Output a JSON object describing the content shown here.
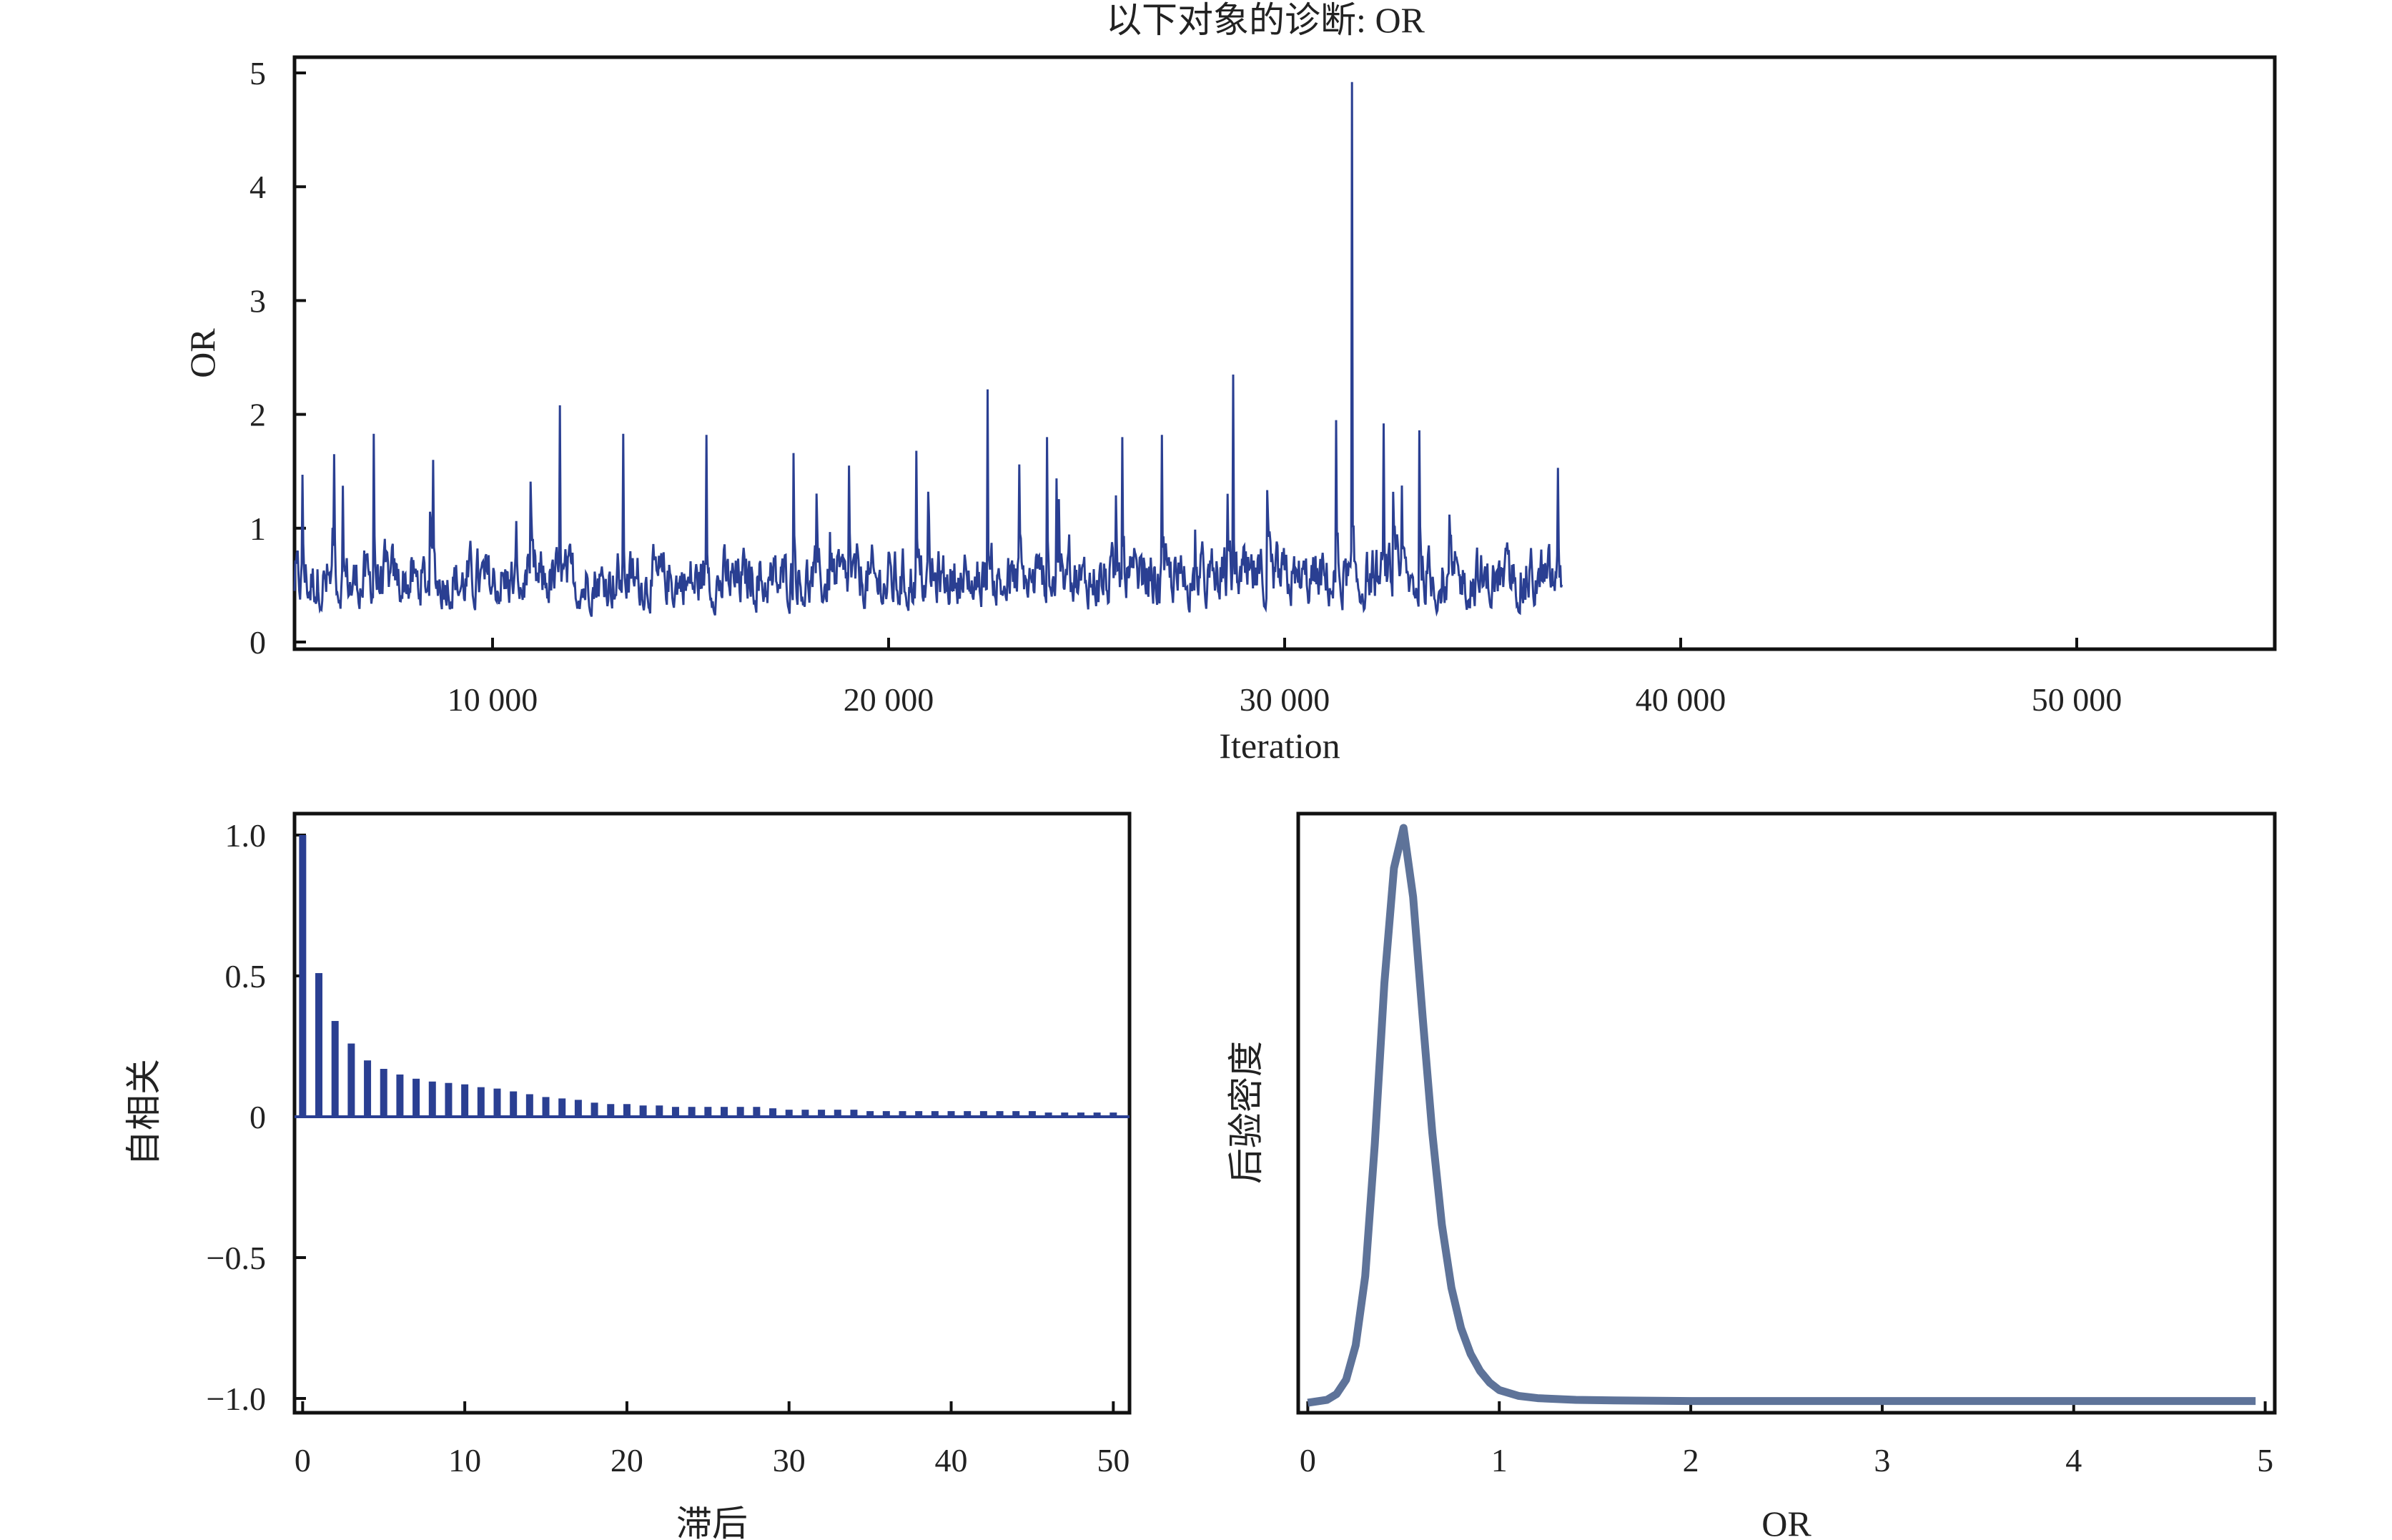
{
  "title": "以下对象的诊断: OR",
  "colors": {
    "trace": "#2a3f92",
    "acf": "#2a3f92",
    "density": "#5e7399",
    "axis": "#111111"
  },
  "chart_data": [
    {
      "type": "line",
      "panel": "trace",
      "title": "以下对象的诊断: OR",
      "xlabel": "Iteration",
      "ylabel": "OR",
      "xlim": [
        5000,
        55000
      ],
      "ylim": [
        0,
        5
      ],
      "x_ticks": [
        "10 000",
        "20 000",
        "30 000",
        "40 000",
        "50 000"
      ],
      "x_tick_values": [
        10000,
        20000,
        30000,
        40000,
        50000
      ],
      "y_ticks": [
        "0",
        "1",
        "2",
        "3",
        "4",
        "5"
      ],
      "y_tick_values": [
        0,
        1,
        2,
        3,
        4,
        5
      ],
      "series_x_range": [
        5000,
        37000
      ],
      "series_center": 0.55,
      "spikes": [
        {
          "x": 31700,
          "y": 4.92
        },
        {
          "x": 28700,
          "y": 2.35
        },
        {
          "x": 22500,
          "y": 2.22
        },
        {
          "x": 11700,
          "y": 2.08
        },
        {
          "x": 31300,
          "y": 1.95
        },
        {
          "x": 32500,
          "y": 1.92
        },
        {
          "x": 33400,
          "y": 1.86
        },
        {
          "x": 7000,
          "y": 1.83
        },
        {
          "x": 13300,
          "y": 1.83
        },
        {
          "x": 15400,
          "y": 1.82
        },
        {
          "x": 26900,
          "y": 1.82
        },
        {
          "x": 25900,
          "y": 1.8
        },
        {
          "x": 24000,
          "y": 1.8
        },
        {
          "x": 20700,
          "y": 1.68
        },
        {
          "x": 17600,
          "y": 1.66
        },
        {
          "x": 6000,
          "y": 1.65
        },
        {
          "x": 8500,
          "y": 1.6
        },
        {
          "x": 23300,
          "y": 1.56
        },
        {
          "x": 19000,
          "y": 1.55
        },
        {
          "x": 5200,
          "y": 1.47
        },
        {
          "x": 36900,
          "y": 1.53
        }
      ]
    },
    {
      "type": "bar",
      "panel": "autocorrelation",
      "xlabel": "滞后",
      "ylabel": "自相关",
      "xlim": [
        -0.5,
        51
      ],
      "ylim": [
        -1.05,
        1.05
      ],
      "x_ticks": [
        "0",
        "10",
        "20",
        "30",
        "40",
        "50"
      ],
      "x_tick_values": [
        0,
        10,
        20,
        30,
        40,
        50
      ],
      "y_ticks": [
        "1.0",
        "0.5",
        "0",
        "−0.5",
        "−1.0"
      ],
      "y_tick_values": [
        1.0,
        0.5,
        0,
        -0.5,
        -1.0
      ],
      "lags": [
        0,
        1,
        2,
        3,
        4,
        5,
        6,
        7,
        8,
        9,
        10,
        11,
        12,
        13,
        14,
        15,
        16,
        17,
        18,
        19,
        20,
        21,
        22,
        23,
        24,
        25,
        26,
        27,
        28,
        29,
        30,
        31,
        32,
        33,
        34,
        35,
        36,
        37,
        38,
        39,
        40,
        41,
        42,
        43,
        44,
        45,
        46,
        47,
        48,
        49,
        50
      ],
      "values": [
        1.0,
        0.51,
        0.34,
        0.26,
        0.2,
        0.17,
        0.15,
        0.135,
        0.125,
        0.12,
        0.115,
        0.105,
        0.1,
        0.09,
        0.08,
        0.07,
        0.065,
        0.06,
        0.05,
        0.045,
        0.045,
        0.04,
        0.04,
        0.035,
        0.035,
        0.035,
        0.035,
        0.035,
        0.035,
        0.03,
        0.025,
        0.025,
        0.025,
        0.025,
        0.025,
        0.02,
        0.02,
        0.02,
        0.02,
        0.02,
        0.02,
        0.02,
        0.02,
        0.02,
        0.02,
        0.02,
        0.015,
        0.015,
        0.015,
        0.015,
        0.015
      ]
    },
    {
      "type": "line",
      "panel": "posterior-density",
      "xlabel": "OR",
      "ylabel": "后验密度",
      "xlim": [
        -0.05,
        5.05
      ],
      "ylim": [
        -0.03,
        1.05
      ],
      "x_ticks": [
        "0",
        "1",
        "2",
        "3",
        "4",
        "5"
      ],
      "x_tick_values": [
        0,
        1,
        2,
        3,
        4,
        5
      ],
      "x": [
        0,
        0.1,
        0.15,
        0.2,
        0.25,
        0.3,
        0.35,
        0.4,
        0.45,
        0.5,
        0.55,
        0.6,
        0.65,
        0.7,
        0.75,
        0.8,
        0.85,
        0.9,
        0.95,
        1.0,
        1.1,
        1.2,
        1.4,
        1.6,
        2.0,
        3.0,
        4.0,
        4.95
      ],
      "y": [
        0.0,
        0.005,
        0.015,
        0.04,
        0.1,
        0.22,
        0.45,
        0.73,
        0.93,
        1.0,
        0.88,
        0.67,
        0.47,
        0.31,
        0.2,
        0.13,
        0.085,
        0.055,
        0.035,
        0.022,
        0.012,
        0.008,
        0.005,
        0.004,
        0.003,
        0.003,
        0.003,
        0.003
      ]
    }
  ]
}
